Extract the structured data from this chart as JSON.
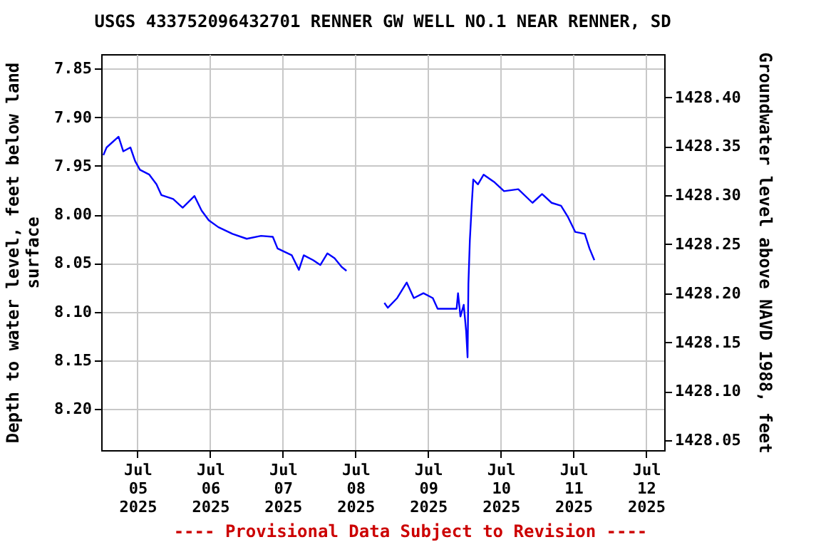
{
  "chart_data": {
    "type": "line",
    "title": "USGS 433752096432701 RENNER GW WELL NO.1 NEAR RENNER, SD",
    "ylabel": "Depth to water level, feet below land surface",
    "y2label": "Groundwater level above NAVD 1988, feet",
    "annotations": [
      "---- Provisional Data Subject to Revision ----"
    ],
    "x": [
      "2025-07-04T12:43",
      "2025-07-04T13:47",
      "2025-07-04T17:44",
      "2025-07-04T19:17",
      "2025-07-04T21:39",
      "2025-07-04T23:12",
      "2025-07-05T00:48",
      "2025-07-05T03:54",
      "2025-07-05T06:16",
      "2025-07-05T07:52",
      "2025-07-05T11:46",
      "2025-07-05T14:55",
      "2025-07-05T18:49",
      "2025-07-05T21:11",
      "2025-07-05T23:32",
      "2025-07-06T02:41",
      "2025-07-06T07:23",
      "2025-07-06T12:05",
      "2025-07-06T16:48",
      "2025-07-06T20:42",
      "2025-07-06T22:16",
      "2025-07-07T02:58",
      "2025-07-07T05:19",
      "2025-07-07T06:55",
      "2025-07-07T10:01",
      "2025-07-07T12:23",
      "2025-07-07T14:44",
      "2025-07-07T17:05",
      "2025-07-07T19:26",
      "2025-07-07T21:02",
      "2025-07-08T09:00",
      "2025-07-08T09:33",
      "2025-07-08T10:41",
      "2025-07-08T13:47",
      "2025-07-08T16:56",
      "2025-07-08T19:17",
      "2025-07-08T22:27",
      "2025-07-09T01:33",
      "2025-07-09T03:09",
      "2025-07-09T09:25",
      "2025-07-09T09:53",
      "2025-07-09T10:41",
      "2025-07-09T11:46",
      "2025-07-09T12:34",
      "2025-07-09T13:02",
      "2025-07-09T13:19",
      "2025-07-09T13:47",
      "2025-07-09T14:27",
      "2025-07-09T14:55",
      "2025-07-09T16:28",
      "2025-07-09T18:21",
      "2025-07-09T21:59",
      "2025-07-10T01:05",
      "2025-07-10T05:47",
      "2025-07-10T10:29",
      "2025-07-10T13:39",
      "2025-07-10T16:48",
      "2025-07-10T19:55",
      "2025-07-10T22:16",
      "2025-07-11T00:37",
      "2025-07-11T03:46",
      "2025-07-11T05:19",
      "2025-07-11T06:55"
    ],
    "series": [
      {
        "color": "#0000ff",
        "values": [
          7.939,
          7.931,
          7.92,
          7.935,
          7.931,
          7.945,
          7.954,
          7.959,
          7.969,
          7.98,
          7.984,
          7.993,
          7.981,
          7.996,
          8.006,
          8.013,
          8.02,
          8.025,
          8.022,
          8.023,
          8.035,
          8.042,
          8.057,
          8.042,
          8.047,
          8.052,
          8.04,
          8.045,
          8.054,
          8.058,
          null,
          8.091,
          8.096,
          8.086,
          8.07,
          8.086,
          8.081,
          8.086,
          8.097,
          8.097,
          8.081,
          8.105,
          8.093,
          8.12,
          8.147,
          8.071,
          8.027,
          7.988,
          7.964,
          7.969,
          7.959,
          7.967,
          7.976,
          7.974,
          7.988,
          7.979,
          7.988,
          7.991,
          8.003,
          8.018,
          8.02,
          8.035,
          8.047
        ]
      }
    ],
    "xlim": [
      "2025-07-04T12:00",
      "2025-07-12T06:00"
    ],
    "xticks": [
      {
        "value": "2025-07-05",
        "label": "Jul\n05\n2025"
      },
      {
        "value": "2025-07-06",
        "label": "Jul\n06\n2025"
      },
      {
        "value": "2025-07-07",
        "label": "Jul\n07\n2025"
      },
      {
        "value": "2025-07-08",
        "label": "Jul\n08\n2025"
      },
      {
        "value": "2025-07-09",
        "label": "Jul\n09\n2025"
      },
      {
        "value": "2025-07-10",
        "label": "Jul\n10\n2025"
      },
      {
        "value": "2025-07-11",
        "label": "Jul\n11\n2025"
      },
      {
        "value": "2025-07-12",
        "label": "Jul\n12\n2025"
      }
    ],
    "ylim": [
      8.2425,
      7.835
    ],
    "yticks": [
      {
        "value": 7.85,
        "label": "7.85"
      },
      {
        "value": 7.9,
        "label": "7.90"
      },
      {
        "value": 7.95,
        "label": "7.95"
      },
      {
        "value": 8.0,
        "label": "8.00"
      },
      {
        "value": 8.05,
        "label": "8.05"
      },
      {
        "value": 8.1,
        "label": "8.10"
      },
      {
        "value": 8.15,
        "label": "8.15"
      },
      {
        "value": 8.2,
        "label": "8.20"
      }
    ],
    "y2lim": [
      1428.04,
      1428.444
    ],
    "y2ticks": [
      {
        "value": 1428.05,
        "label": "1428.05"
      },
      {
        "value": 1428.1,
        "label": "1428.10"
      },
      {
        "value": 1428.15,
        "label": "1428.15"
      },
      {
        "value": 1428.2,
        "label": "1428.20"
      },
      {
        "value": 1428.25,
        "label": "1428.25"
      },
      {
        "value": 1428.3,
        "label": "1428.30"
      },
      {
        "value": 1428.35,
        "label": "1428.35"
      },
      {
        "value": 1428.4,
        "label": "1428.40"
      }
    ],
    "grid": true
  }
}
